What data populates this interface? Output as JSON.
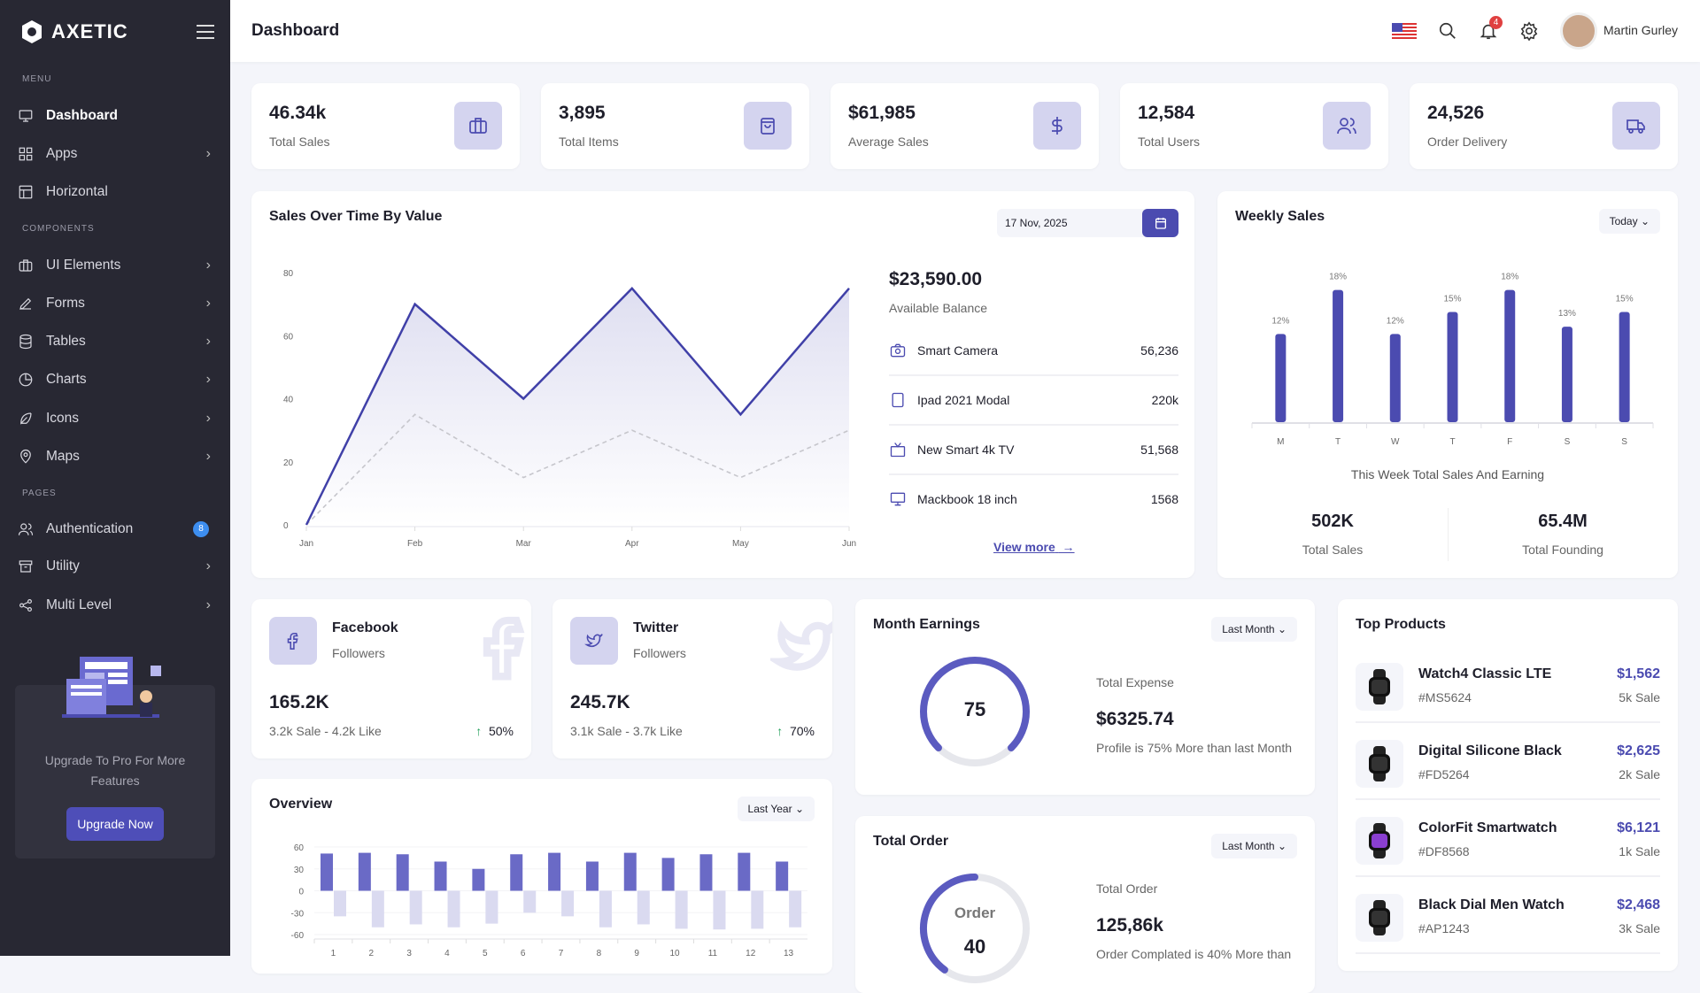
{
  "brand": {
    "name": "AXETIC"
  },
  "sidebar": {
    "sections": [
      "MENU",
      "COMPONENTS",
      "PAGES"
    ],
    "items": [
      {
        "label": "Dashboard",
        "icon": "monitor-icon",
        "active": true
      },
      {
        "label": "Apps",
        "icon": "grid-icon",
        "chevron": true
      },
      {
        "label": "Horizontal",
        "icon": "layout-icon"
      },
      {
        "label": "UI Elements",
        "icon": "briefcase-icon",
        "chevron": true
      },
      {
        "label": "Forms",
        "icon": "pen-icon",
        "chevron": true
      },
      {
        "label": "Tables",
        "icon": "database-icon",
        "chevron": true
      },
      {
        "label": "Charts",
        "icon": "pie-chart-icon",
        "chevron": true
      },
      {
        "label": "Icons",
        "icon": "feather-icon",
        "chevron": true
      },
      {
        "label": "Maps",
        "icon": "map-pin-icon",
        "chevron": true
      },
      {
        "label": "Authentication",
        "icon": "users-icon",
        "badge": "8"
      },
      {
        "label": "Utility",
        "icon": "archive-icon",
        "chevron": true
      },
      {
        "label": "Multi Level",
        "icon": "share-icon",
        "chevron": true
      }
    ],
    "upgrade": {
      "text": "Upgrade To Pro For More Features",
      "button": "Upgrade Now"
    }
  },
  "header": {
    "title": "Dashboard",
    "notifications": "4",
    "user": "Martin Gurley"
  },
  "stats": [
    {
      "value": "46.34k",
      "label": "Total Sales",
      "icon": "briefcase-icon"
    },
    {
      "value": "3,895",
      "label": "Total Items",
      "icon": "shopping-bag-icon"
    },
    {
      "value": "$61,985",
      "label": "Average Sales",
      "icon": "dollar-icon"
    },
    {
      "value": "12,584",
      "label": "Total Users",
      "icon": "users-icon"
    },
    {
      "value": "24,526",
      "label": "Order Delivery",
      "icon": "truck-icon"
    }
  ],
  "sales": {
    "title": "Sales Over Time By Value",
    "date": "17 Nov, 2025",
    "balance": "$23,590.00",
    "balance_label": "Available Balance",
    "items": [
      {
        "name": "Smart Camera",
        "value": "56,236",
        "icon": "camera-icon"
      },
      {
        "name": "Ipad 2021 Modal",
        "value": "220k",
        "icon": "tablet-icon"
      },
      {
        "name": "New Smart 4k TV",
        "value": "51,568",
        "icon": "tv-icon"
      },
      {
        "name": "Mackbook 18 inch",
        "value": "1568",
        "icon": "monitor-icon"
      }
    ],
    "view_more": "View more"
  },
  "weekly": {
    "title": "Weekly Sales",
    "filter": "Today",
    "caption": "This Week Total Sales And Earning",
    "stats": [
      {
        "value": "502K",
        "label": "Total Sales"
      },
      {
        "value": "65.4M",
        "label": "Total Founding"
      }
    ]
  },
  "social": [
    {
      "name": "Facebook",
      "sub": "Followers",
      "count": "165.2K",
      "detail": "3.2k Sale - 4.2k Like",
      "growth": "50%"
    },
    {
      "name": "Twitter",
      "sub": "Followers",
      "count": "245.7K",
      "detail": "3.1k Sale - 3.7k Like",
      "growth": "70%"
    }
  ],
  "earnings": {
    "title": "Month Earnings",
    "filter": "Last Month",
    "gauge": "75",
    "gauge_percent": 75,
    "label": "Total Expense",
    "value": "$6325.74",
    "note": "Profile is 75% More than last Month"
  },
  "orders": {
    "title": "Total Order",
    "filter": "Last Month",
    "gauge_label": "Order",
    "gauge": "40",
    "gauge_percent": 40,
    "label": "Total Order",
    "value": "125,86k",
    "note": "Order Complated is 40% More than"
  },
  "top_products": {
    "title": "Top Products",
    "items": [
      {
        "name": "Watch4 Classic LTE",
        "code": "#MS5624",
        "price": "$1,562",
        "sales": "5k Sale"
      },
      {
        "name": "Digital Silicone Black",
        "code": "#FD5264",
        "price": "$2,625",
        "sales": "2k Sale"
      },
      {
        "name": "ColorFit Smartwatch",
        "code": "#DF8568",
        "price": "$6,121",
        "sales": "1k Sale"
      },
      {
        "name": "Black Dial Men Watch",
        "code": "#AP1243",
        "price": "$2,468",
        "sales": "3k Sale"
      }
    ]
  },
  "overview": {
    "title": "Overview",
    "filter": "Last Year"
  },
  "colors": {
    "accent": "#4b4bb0",
    "accent_light": "#d4d4ef",
    "sidebar": "#282833",
    "up": "#22a05a"
  },
  "chart_data": [
    {
      "type": "area",
      "x": [
        "Jan",
        "Feb",
        "Mar",
        "Apr",
        "May",
        "Jun"
      ],
      "ylim": [
        0,
        80
      ],
      "yticks": [
        0,
        20,
        40,
        60,
        80
      ],
      "series": [
        {
          "values": [
            0,
            70,
            40,
            75,
            35,
            75
          ],
          "style": "solid-area"
        },
        {
          "values": [
            0,
            35,
            15,
            30,
            15,
            30
          ],
          "style": "dashed"
        }
      ]
    },
    {
      "type": "bar",
      "categories": [
        "M",
        "T",
        "W",
        "T",
        "F",
        "S",
        "S"
      ],
      "values": [
        12,
        18,
        12,
        15,
        18,
        13,
        15
      ],
      "labels": [
        "12%",
        "18%",
        "12%",
        "15%",
        "18%",
        "13%",
        "15%"
      ]
    },
    {
      "type": "bar",
      "categories": [
        "1",
        "2",
        "3",
        "4",
        "5",
        "6",
        "7",
        "8",
        "9",
        "10",
        "11",
        "12",
        "13"
      ],
      "ylim": [
        -60,
        60
      ],
      "yticks": [
        60,
        30,
        0,
        -30,
        -60
      ],
      "series": [
        {
          "values": [
            51,
            52,
            50,
            40,
            30,
            50,
            52,
            40,
            52,
            45,
            50,
            52,
            40
          ]
        },
        {
          "values": [
            -35,
            -50,
            -46,
            -50,
            -45,
            -30,
            -35,
            -50,
            -46,
            -52,
            -53,
            -52,
            -50
          ]
        }
      ]
    }
  ]
}
